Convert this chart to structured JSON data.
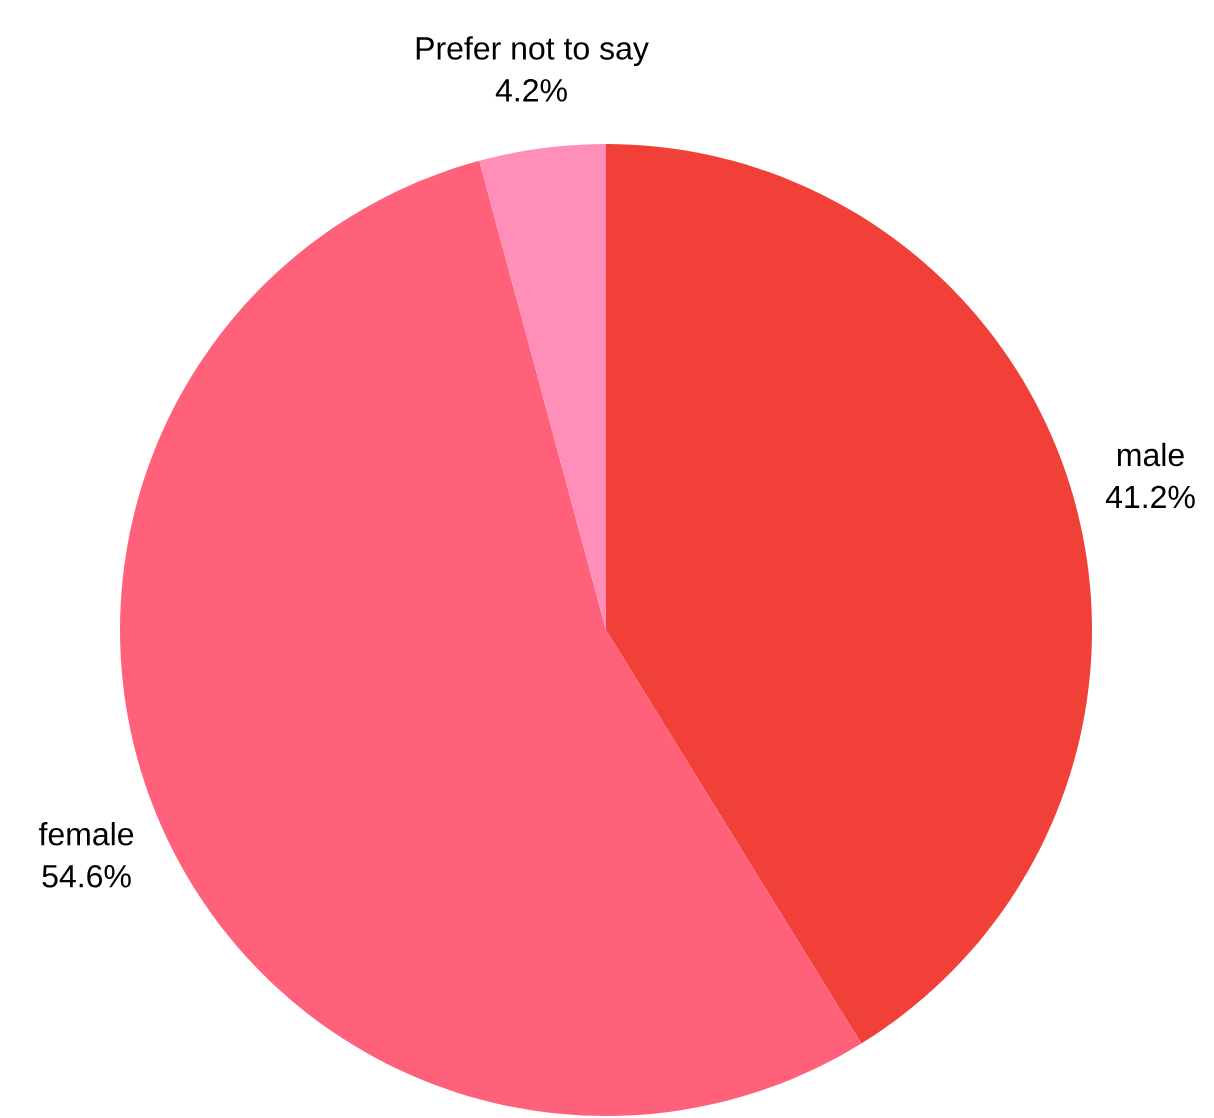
{
  "chart_data": {
    "type": "pie",
    "categories": [
      "male",
      "female",
      "Prefer not to say"
    ],
    "values": [
      41.2,
      54.6,
      4.2
    ],
    "value_labels": [
      "41.2%",
      "54.6%",
      "4.2%"
    ],
    "colors": [
      "#f04038",
      "#ff607a",
      "#ff8eb8"
    ]
  }
}
